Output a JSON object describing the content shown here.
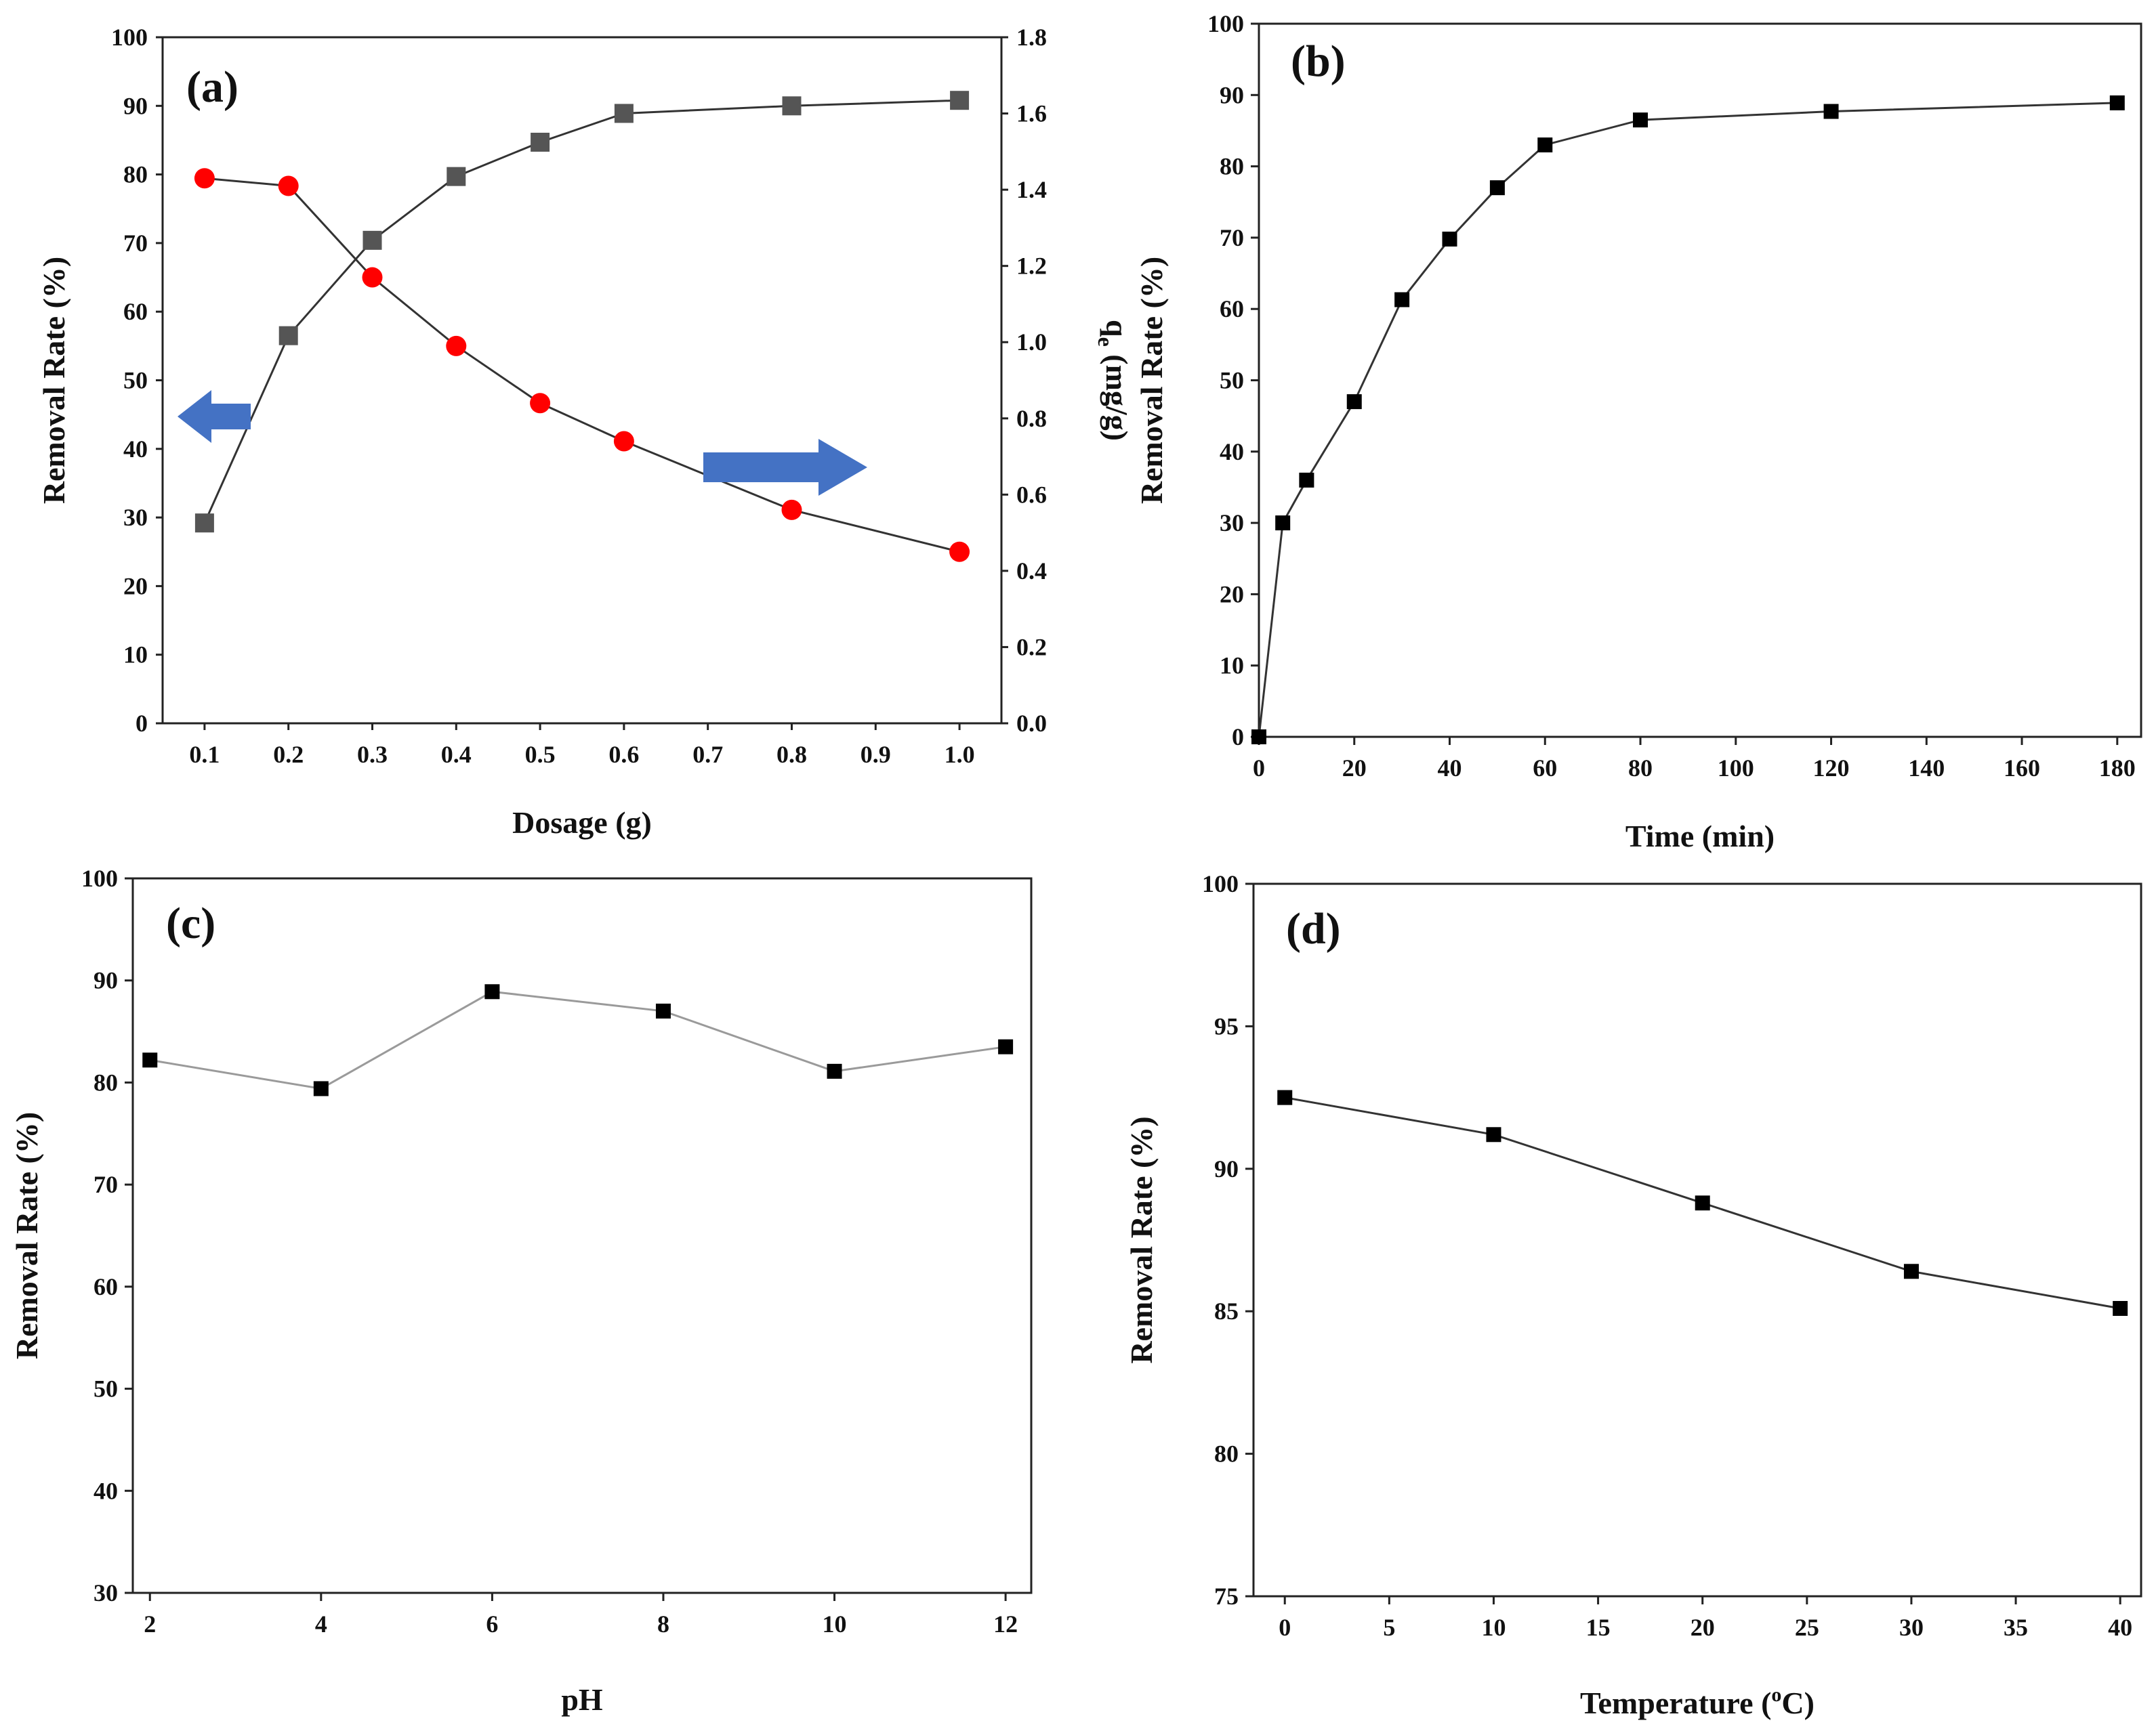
{
  "chart_data": [
    {
      "type": "line",
      "panel_label": "(a)",
      "xlabel": "Dosage (g)",
      "ylabel": "Removal Rate (%)",
      "y2label": "q",
      "y2label_sub": "e",
      "y2label_unit": " (mg/g)",
      "xlim": [
        0.05,
        1.05
      ],
      "ylim": [
        0,
        100
      ],
      "y2lim": [
        0,
        1.8
      ],
      "xticks": [
        "0.1",
        "0.2",
        "0.3",
        "0.4",
        "0.5",
        "0.6",
        "0.7",
        "0.8",
        "0.9",
        "1.0"
      ],
      "yticks": [
        "0",
        "10",
        "20",
        "30",
        "40",
        "50",
        "60",
        "70",
        "80",
        "90",
        "100"
      ],
      "y2ticks": [
        "0.0",
        "0.2",
        "0.4",
        "0.6",
        "0.8",
        "1.0",
        "1.2",
        "1.4",
        "1.6",
        "1.8"
      ],
      "grid": false,
      "series": [
        {
          "axis": "left",
          "marker": "square",
          "color": "#555555",
          "x": [
            0.1,
            0.2,
            0.3,
            0.4,
            0.5,
            0.6,
            0.8,
            1.0
          ],
          "y": [
            29.2,
            56.5,
            70.4,
            79.7,
            84.7,
            88.9,
            90.0,
            90.8
          ]
        },
        {
          "axis": "right",
          "marker": "circle",
          "color": "#ff0000",
          "x": [
            0.1,
            0.2,
            0.3,
            0.4,
            0.5,
            0.6,
            0.8,
            1.0
          ],
          "y": [
            1.43,
            1.41,
            1.17,
            0.99,
            0.84,
            0.74,
            0.56,
            0.45
          ]
        }
      ],
      "arrows": [
        {
          "direction": "left",
          "color": "#4472c4"
        },
        {
          "direction": "right",
          "color": "#4472c4"
        }
      ]
    },
    {
      "type": "line",
      "panel_label": "(b)",
      "xlabel": "Time (min)",
      "ylabel": "Removal Rate (%)",
      "xlim": [
        0,
        185
      ],
      "ylim": [
        0,
        100
      ],
      "xticks": [
        "0",
        "20",
        "40",
        "60",
        "80",
        "100",
        "120",
        "140",
        "160",
        "180"
      ],
      "yticks": [
        "0",
        "10",
        "20",
        "30",
        "40",
        "50",
        "60",
        "70",
        "80",
        "90",
        "100"
      ],
      "grid": false,
      "series": [
        {
          "marker": "square",
          "color": "#000000",
          "x": [
            0,
            5,
            10,
            20,
            30,
            40,
            50,
            60,
            80,
            120,
            180
          ],
          "y": [
            0,
            30.0,
            36.0,
            47.0,
            61.3,
            69.8,
            77.0,
            83.0,
            86.5,
            87.7,
            88.9
          ]
        }
      ]
    },
    {
      "type": "line",
      "panel_label": "(c)",
      "xlabel": "pH",
      "ylabel": "Removal Rate (%)",
      "xlim": [
        1.8,
        12.3
      ],
      "ylim": [
        30,
        100
      ],
      "xticks": [
        "2",
        "4",
        "6",
        "8",
        "10",
        "12"
      ],
      "yticks": [
        "30",
        "40",
        "50",
        "60",
        "70",
        "80",
        "90",
        "100"
      ],
      "grid": false,
      "series": [
        {
          "marker": "square",
          "color": "#000000",
          "line_color": "#9a9a9a",
          "x": [
            2,
            4,
            6,
            8,
            10,
            12
          ],
          "y": [
            82.2,
            79.4,
            88.9,
            87.0,
            81.1,
            83.5
          ]
        }
      ]
    },
    {
      "type": "line",
      "panel_label": "(d)",
      "xlabel": "Temperature (",
      "xlabel_sup": "o",
      "xlabel_tail": "C)",
      "ylabel": "Removal Rate (%)",
      "xlim": [
        -1.5,
        41
      ],
      "ylim": [
        75,
        100
      ],
      "xticks": [
        "0",
        "5",
        "10",
        "15",
        "20",
        "25",
        "30",
        "35",
        "40"
      ],
      "yticks": [
        "75",
        "80",
        "85",
        "90",
        "95",
        "100"
      ],
      "grid": false,
      "series": [
        {
          "marker": "square",
          "color": "#000000",
          "x": [
            0,
            10,
            20,
            30,
            40
          ],
          "y": [
            92.5,
            91.2,
            88.8,
            86.4,
            85.1
          ]
        }
      ]
    }
  ]
}
